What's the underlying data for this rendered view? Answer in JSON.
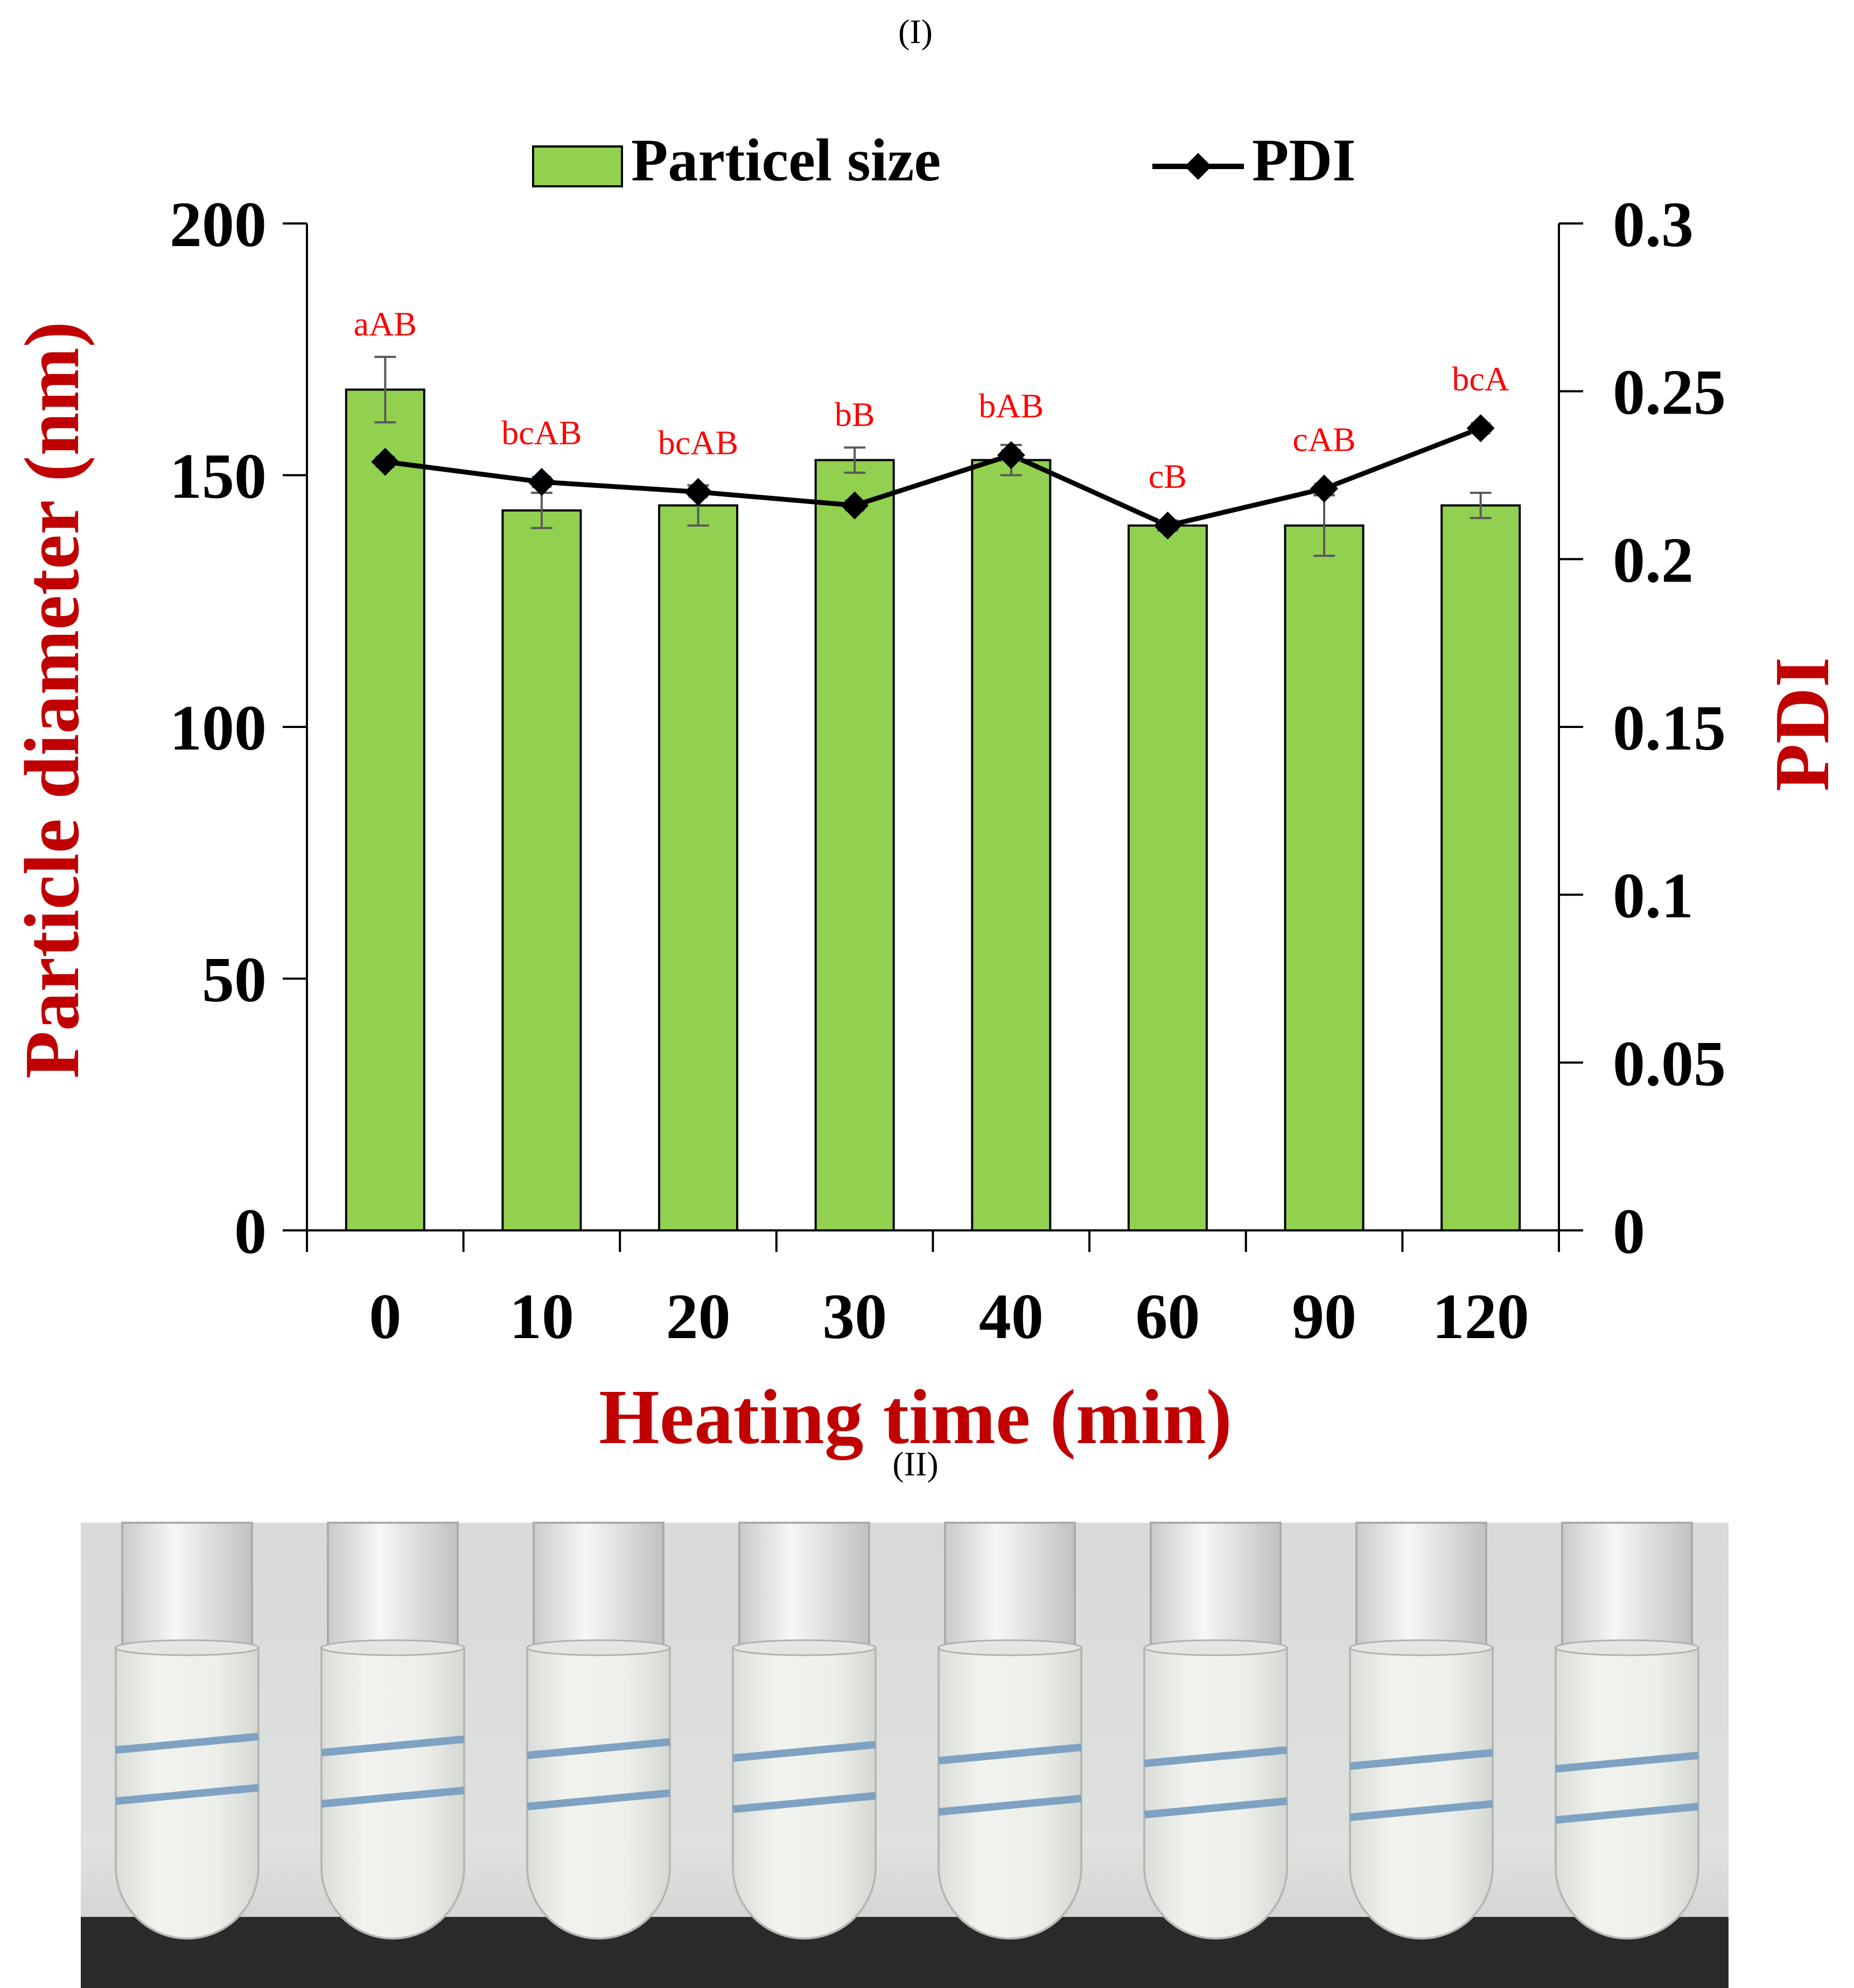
{
  "panel_labels": {
    "top": "(I)",
    "bottom": "(II)"
  },
  "colors": {
    "bar_fill": "#92D050",
    "bar_edge": "#000000",
    "line": "#000000",
    "axis_title": "#C00000",
    "annotation": "#FF0000",
    "error_bar": "#595959",
    "pdi_error": "#2E75B6"
  },
  "chart_data": {
    "type": "bar+line",
    "xlabel": "Heating time (min)",
    "ylabel_left": "Particle diameter (nm)",
    "ylabel_right": "PDI",
    "categories": [
      "0",
      "10",
      "20",
      "30",
      "40",
      "60",
      "90",
      "120"
    ],
    "ylim_left": [
      0,
      200
    ],
    "yticks_left": [
      "0",
      "50",
      "100",
      "150",
      "200"
    ],
    "ylim_right": [
      0,
      0.3
    ],
    "yticks_right": [
      "0",
      "0.05",
      "0.1",
      "0.15",
      "0.2",
      "0.25",
      "0.3"
    ],
    "legend": {
      "position": "top",
      "bar_label": "Particel size",
      "line_label": "PDI"
    },
    "series": [
      {
        "name": "Particel size",
        "kind": "bar",
        "axis": "left",
        "values": [
          167,
          143,
          144,
          153,
          153,
          140,
          140,
          144
        ],
        "errors": [
          6.5,
          3.5,
          4.0,
          2.5,
          3.0,
          1.0,
          6.0,
          2.5
        ]
      },
      {
        "name": "PDI",
        "kind": "line",
        "axis": "right",
        "values": [
          0.229,
          0.223,
          0.22,
          0.216,
          0.231,
          0.21,
          0.221,
          0.239
        ],
        "errors": [
          0.0015,
          0.0015,
          0.0015,
          0.0015,
          0.0015,
          0.0015,
          0.0015,
          0.0015
        ]
      }
    ],
    "annotations": [
      "aAB",
      "bcAB",
      "bcAB",
      "bB",
      "bAB",
      "cB",
      "cAB",
      "bcA"
    ]
  }
}
